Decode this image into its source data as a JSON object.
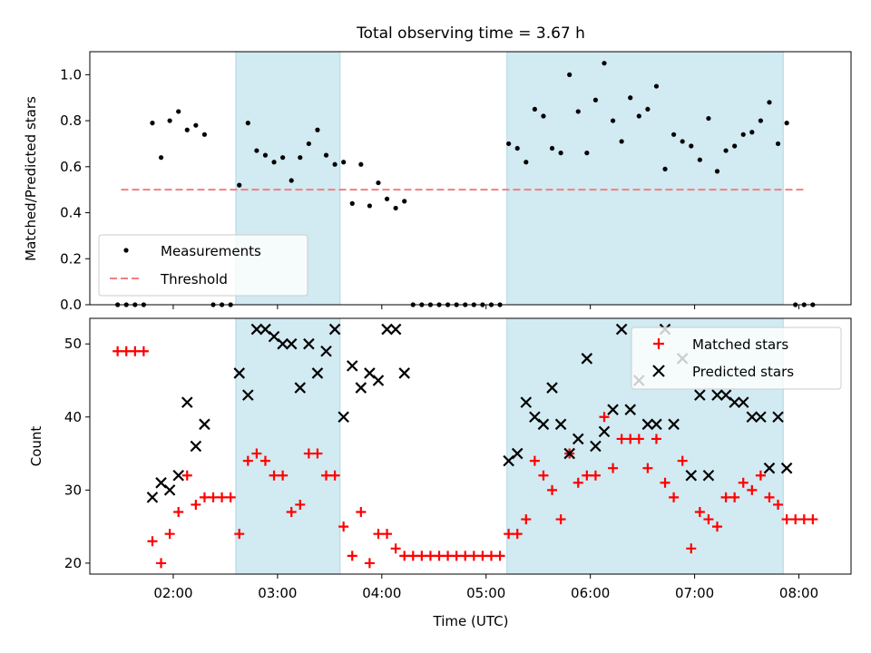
{
  "figure_title": "Total observing time = 3.67 h",
  "shaded_intervals": [
    "02:36",
    "03:36",
    "05:12",
    "07:51"
  ],
  "x_ticks": [
    "02:00",
    "03:00",
    "04:00",
    "05:00",
    "06:00",
    "07:00",
    "08:00"
  ],
  "colors": {
    "shade": "#add8e6",
    "measurement": "#000000",
    "threshold": "#f08080",
    "matched": "#ff0000",
    "predicted": "#000000"
  },
  "chart_data": [
    {
      "type": "scatter",
      "ylabel": "Matched/Predicted stars",
      "ylim": [
        0,
        1.1
      ],
      "yticks": [
        "0.0",
        "0.2",
        "0.4",
        "0.6",
        "0.8",
        "1.0"
      ],
      "xlim": [
        "01:12",
        "08:30"
      ],
      "threshold": 0.5,
      "threshold_span": [
        "01:30",
        "08:03"
      ],
      "legend": {
        "position": "lower left",
        "items": [
          "Measurements",
          "Threshold"
        ]
      },
      "series": [
        {
          "name": "Measurements",
          "points": [
            [
              "01:28",
              0.0
            ],
            [
              "01:33",
              0.0
            ],
            [
              "01:38",
              0.0
            ],
            [
              "01:43",
              0.0
            ],
            [
              "01:48",
              0.79
            ],
            [
              "01:53",
              0.64
            ],
            [
              "01:58",
              0.8
            ],
            [
              "02:03",
              0.84
            ],
            [
              "02:08",
              0.76
            ],
            [
              "02:13",
              0.78
            ],
            [
              "02:18",
              0.74
            ],
            [
              "02:23",
              0.0
            ],
            [
              "02:28",
              0.0
            ],
            [
              "02:33",
              0.0
            ],
            [
              "02:38",
              0.52
            ],
            [
              "02:43",
              0.79
            ],
            [
              "02:48",
              0.67
            ],
            [
              "02:53",
              0.65
            ],
            [
              "02:58",
              0.62
            ],
            [
              "03:03",
              0.64
            ],
            [
              "03:08",
              0.54
            ],
            [
              "03:13",
              0.64
            ],
            [
              "03:18",
              0.7
            ],
            [
              "03:23",
              0.76
            ],
            [
              "03:28",
              0.65
            ],
            [
              "03:33",
              0.61
            ],
            [
              "03:38",
              0.62
            ],
            [
              "03:43",
              0.44
            ],
            [
              "03:48",
              0.61
            ],
            [
              "03:53",
              0.43
            ],
            [
              "03:58",
              0.53
            ],
            [
              "04:03",
              0.46
            ],
            [
              "04:08",
              0.42
            ],
            [
              "04:13",
              0.45
            ],
            [
              "04:18",
              0.0
            ],
            [
              "04:23",
              0.0
            ],
            [
              "04:28",
              0.0
            ],
            [
              "04:33",
              0.0
            ],
            [
              "04:38",
              0.0
            ],
            [
              "04:43",
              0.0
            ],
            [
              "04:48",
              0.0
            ],
            [
              "04:53",
              0.0
            ],
            [
              "04:58",
              0.0
            ],
            [
              "05:03",
              0.0
            ],
            [
              "05:08",
              0.0
            ],
            [
              "05:13",
              0.7
            ],
            [
              "05:18",
              0.68
            ],
            [
              "05:23",
              0.62
            ],
            [
              "05:28",
              0.85
            ],
            [
              "05:33",
              0.82
            ],
            [
              "05:38",
              0.68
            ],
            [
              "05:43",
              0.66
            ],
            [
              "05:48",
              1.0
            ],
            [
              "05:53",
              0.84
            ],
            [
              "05:58",
              0.66
            ],
            [
              "06:03",
              0.89
            ],
            [
              "06:08",
              1.05
            ],
            [
              "06:13",
              0.8
            ],
            [
              "06:18",
              0.71
            ],
            [
              "06:23",
              0.9
            ],
            [
              "06:28",
              0.82
            ],
            [
              "06:33",
              0.85
            ],
            [
              "06:38",
              0.95
            ],
            [
              "06:43",
              0.59
            ],
            [
              "06:48",
              0.74
            ],
            [
              "06:53",
              0.71
            ],
            [
              "06:58",
              0.69
            ],
            [
              "07:03",
              0.63
            ],
            [
              "07:08",
              0.81
            ],
            [
              "07:13",
              0.58
            ],
            [
              "07:18",
              0.67
            ],
            [
              "07:23",
              0.69
            ],
            [
              "07:28",
              0.74
            ],
            [
              "07:33",
              0.75
            ],
            [
              "07:38",
              0.8
            ],
            [
              "07:43",
              0.88
            ],
            [
              "07:48",
              0.7
            ],
            [
              "07:53",
              0.79
            ],
            [
              "07:58",
              0.0
            ],
            [
              "08:03",
              0.0
            ],
            [
              "08:08",
              0.0
            ]
          ]
        }
      ]
    },
    {
      "type": "scatter",
      "xlabel": "Time (UTC)",
      "ylabel": "Count",
      "ylim": [
        18.5,
        53.5
      ],
      "yticks": [
        "20",
        "30",
        "40",
        "50"
      ],
      "xlim": [
        "01:12",
        "08:30"
      ],
      "legend": {
        "position": "upper right",
        "items": [
          "Matched stars",
          "Predicted stars"
        ]
      },
      "series": [
        {
          "name": "Matched stars",
          "points": [
            [
              "01:28",
              49
            ],
            [
              "01:33",
              49
            ],
            [
              "01:38",
              49
            ],
            [
              "01:43",
              49
            ],
            [
              "01:48",
              23
            ],
            [
              "01:53",
              20
            ],
            [
              "01:58",
              24
            ],
            [
              "02:03",
              27
            ],
            [
              "02:08",
              32
            ],
            [
              "02:13",
              28
            ],
            [
              "02:18",
              29
            ],
            [
              "02:23",
              29
            ],
            [
              "02:28",
              29
            ],
            [
              "02:33",
              29
            ],
            [
              "02:38",
              24
            ],
            [
              "02:43",
              34
            ],
            [
              "02:48",
              35
            ],
            [
              "02:53",
              34
            ],
            [
              "02:58",
              32
            ],
            [
              "03:03",
              32
            ],
            [
              "03:08",
              27
            ],
            [
              "03:13",
              28
            ],
            [
              "03:18",
              35
            ],
            [
              "03:23",
              35
            ],
            [
              "03:28",
              32
            ],
            [
              "03:33",
              32
            ],
            [
              "03:38",
              25
            ],
            [
              "03:43",
              21
            ],
            [
              "03:48",
              27
            ],
            [
              "03:53",
              20
            ],
            [
              "03:58",
              24
            ],
            [
              "04:03",
              24
            ],
            [
              "04:08",
              22
            ],
            [
              "04:13",
              21
            ],
            [
              "04:18",
              21
            ],
            [
              "04:23",
              21
            ],
            [
              "04:28",
              21
            ],
            [
              "04:33",
              21
            ],
            [
              "04:38",
              21
            ],
            [
              "04:43",
              21
            ],
            [
              "04:48",
              21
            ],
            [
              "04:53",
              21
            ],
            [
              "04:58",
              21
            ],
            [
              "05:03",
              21
            ],
            [
              "05:08",
              21
            ],
            [
              "05:13",
              24
            ],
            [
              "05:18",
              24
            ],
            [
              "05:23",
              26
            ],
            [
              "05:28",
              34
            ],
            [
              "05:33",
              32
            ],
            [
              "05:38",
              30
            ],
            [
              "05:43",
              26
            ],
            [
              "05:48",
              35
            ],
            [
              "05:53",
              31
            ],
            [
              "05:58",
              32
            ],
            [
              "06:03",
              32
            ],
            [
              "06:08",
              40
            ],
            [
              "06:13",
              33
            ],
            [
              "06:18",
              37
            ],
            [
              "06:23",
              37
            ],
            [
              "06:28",
              37
            ],
            [
              "06:33",
              33
            ],
            [
              "06:38",
              37
            ],
            [
              "06:43",
              31
            ],
            [
              "06:48",
              29
            ],
            [
              "06:53",
              34
            ],
            [
              "06:58",
              22
            ],
            [
              "07:03",
              27
            ],
            [
              "07:08",
              26
            ],
            [
              "07:13",
              25
            ],
            [
              "07:18",
              29
            ],
            [
              "07:23",
              29
            ],
            [
              "07:28",
              31
            ],
            [
              "07:33",
              30
            ],
            [
              "07:38",
              32
            ],
            [
              "07:43",
              29
            ],
            [
              "07:48",
              28
            ],
            [
              "07:53",
              26
            ],
            [
              "07:58",
              26
            ],
            [
              "08:03",
              26
            ],
            [
              "08:08",
              26
            ]
          ]
        },
        {
          "name": "Predicted stars",
          "points": [
            [
              "01:48",
              29
            ],
            [
              "01:53",
              31
            ],
            [
              "01:58",
              30
            ],
            [
              "02:03",
              32
            ],
            [
              "02:08",
              42
            ],
            [
              "02:13",
              36
            ],
            [
              "02:18",
              39
            ],
            [
              "02:38",
              46
            ],
            [
              "02:43",
              43
            ],
            [
              "02:48",
              52
            ],
            [
              "02:53",
              52
            ],
            [
              "02:58",
              51
            ],
            [
              "03:03",
              50
            ],
            [
              "03:08",
              50
            ],
            [
              "03:13",
              44
            ],
            [
              "03:18",
              50
            ],
            [
              "03:23",
              46
            ],
            [
              "03:28",
              49
            ],
            [
              "03:33",
              52
            ],
            [
              "03:38",
              40
            ],
            [
              "03:43",
              47
            ],
            [
              "03:48",
              44
            ],
            [
              "03:53",
              46
            ],
            [
              "03:58",
              45
            ],
            [
              "04:03",
              52
            ],
            [
              "04:08",
              52
            ],
            [
              "04:13",
              46
            ],
            [
              "05:13",
              34
            ],
            [
              "05:18",
              35
            ],
            [
              "05:23",
              42
            ],
            [
              "05:28",
              40
            ],
            [
              "05:33",
              39
            ],
            [
              "05:38",
              44
            ],
            [
              "05:43",
              39
            ],
            [
              "05:48",
              35
            ],
            [
              "05:53",
              37
            ],
            [
              "05:58",
              48
            ],
            [
              "06:03",
              36
            ],
            [
              "06:08",
              38
            ],
            [
              "06:13",
              41
            ],
            [
              "06:18",
              52
            ],
            [
              "06:23",
              41
            ],
            [
              "06:28",
              45
            ],
            [
              "06:33",
              39
            ],
            [
              "06:38",
              39
            ],
            [
              "06:43",
              52
            ],
            [
              "06:48",
              39
            ],
            [
              "06:53",
              48
            ],
            [
              "06:58",
              32
            ],
            [
              "07:03",
              43
            ],
            [
              "07:08",
              32
            ],
            [
              "07:13",
              43
            ],
            [
              "07:18",
              43
            ],
            [
              "07:23",
              42
            ],
            [
              "07:28",
              42
            ],
            [
              "07:33",
              40
            ],
            [
              "07:38",
              40
            ],
            [
              "07:43",
              33
            ],
            [
              "07:48",
              40
            ],
            [
              "07:53",
              33
            ]
          ]
        }
      ]
    }
  ]
}
